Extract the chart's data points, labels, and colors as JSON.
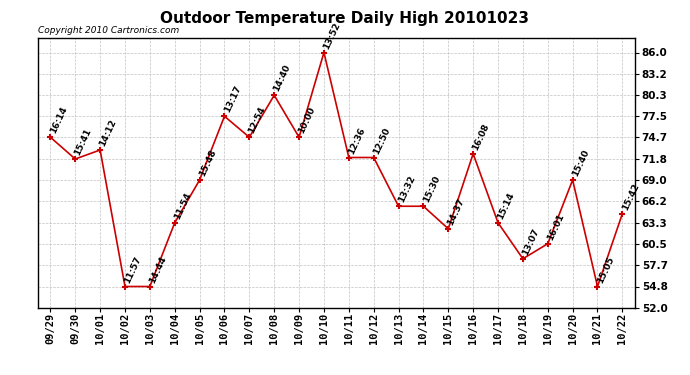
{
  "title": "Outdoor Temperature Daily High 20101023",
  "copyright": "Copyright 2010 Cartronics.com",
  "dates": [
    "09/29",
    "09/30",
    "10/01",
    "10/02",
    "10/03",
    "10/04",
    "10/05",
    "10/06",
    "10/07",
    "10/08",
    "10/09",
    "10/10",
    "10/11",
    "10/12",
    "10/13",
    "10/14",
    "10/15",
    "10/16",
    "10/17",
    "10/18",
    "10/19",
    "10/20",
    "10/21",
    "10/22"
  ],
  "temps": [
    74.7,
    71.8,
    73.0,
    54.8,
    54.8,
    63.3,
    69.0,
    77.5,
    74.7,
    80.3,
    74.7,
    86.0,
    72.0,
    72.0,
    65.5,
    65.5,
    62.5,
    72.5,
    63.3,
    58.5,
    60.5,
    69.0,
    54.8,
    64.5
  ],
  "labels": [
    "16:14",
    "15:41",
    "14:12",
    "11:57",
    "14:44",
    "11:54",
    "15:48",
    "13:17",
    "12:54",
    "14:40",
    "10:00",
    "13:52",
    "12:36",
    "12:50",
    "13:32",
    "15:30",
    "14:37",
    "16:08",
    "15:14",
    "13:07",
    "16:01",
    "15:40",
    "15:05",
    "15:42"
  ],
  "yticks": [
    52.0,
    54.8,
    57.7,
    60.5,
    63.3,
    66.2,
    69.0,
    71.8,
    74.7,
    77.5,
    80.3,
    83.2,
    86.0
  ],
  "line_color": "#cc0000",
  "marker_color": "#cc0000",
  "background_color": "#ffffff",
  "grid_color": "#bbbbbb",
  "title_fontsize": 11,
  "label_fontsize": 6.5,
  "copyright_fontsize": 6.5,
  "tick_fontsize": 7.5,
  "ytick_fontsize": 7.5
}
